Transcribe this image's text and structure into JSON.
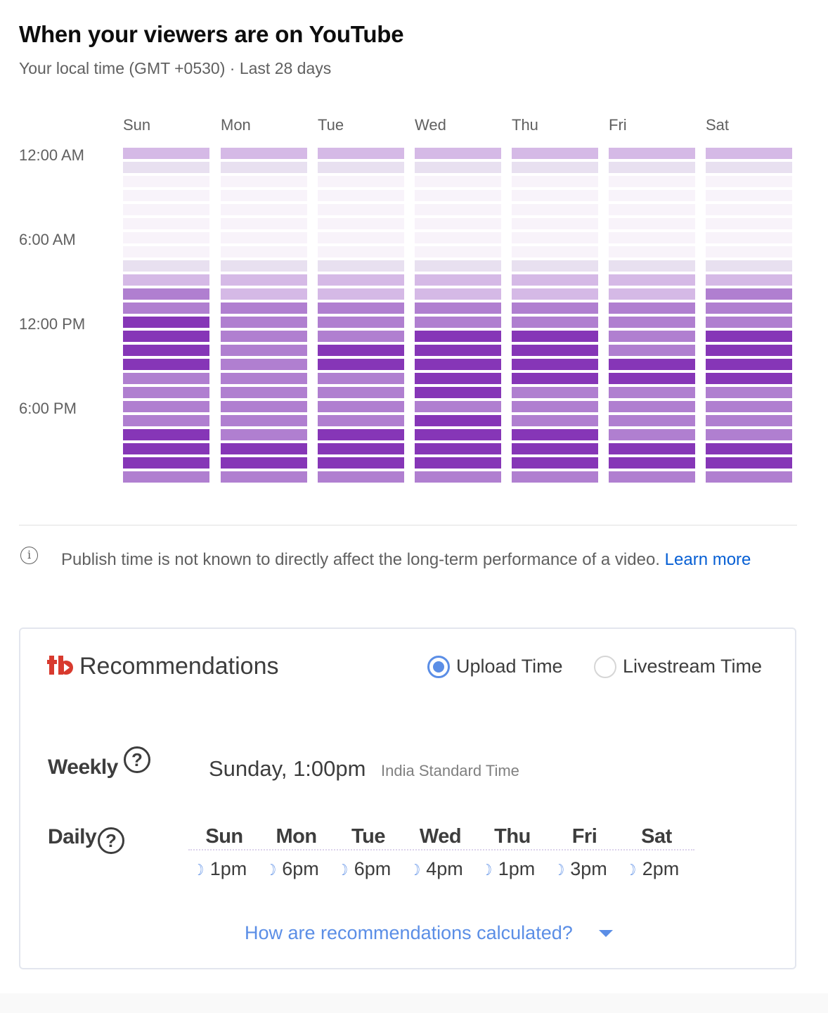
{
  "header": {
    "title": "When your viewers are on YouTube",
    "subtitle": "Your local time (GMT +0530) · Last 28 days"
  },
  "chart_data": {
    "type": "heatmap",
    "title": "When your viewers are on YouTube",
    "columns": [
      "Sun",
      "Mon",
      "Tue",
      "Wed",
      "Thu",
      "Fri",
      "Sat"
    ],
    "row_labels": [
      "12:00 AM",
      "6:00 AM",
      "12:00 PM",
      "6:00 PM"
    ],
    "rows_per_day": 24,
    "scale": "0 = fewest viewers, 4 = most viewers",
    "colors": [
      "#f8f3fa",
      "#e8e0f0",
      "#d5b9e6",
      "#b07fd0",
      "#8636b7"
    ],
    "levels": [
      [
        2,
        2,
        2,
        2,
        2,
        2,
        2
      ],
      [
        1,
        1,
        1,
        1,
        1,
        1,
        1
      ],
      [
        0,
        0,
        0,
        0,
        0,
        0,
        0
      ],
      [
        0,
        0,
        0,
        0,
        0,
        0,
        0
      ],
      [
        0,
        0,
        0,
        0,
        0,
        0,
        0
      ],
      [
        0,
        0,
        0,
        0,
        0,
        0,
        0
      ],
      [
        0,
        0,
        0,
        0,
        0,
        0,
        0
      ],
      [
        0,
        0,
        0,
        0,
        0,
        0,
        0
      ],
      [
        1,
        1,
        1,
        1,
        1,
        1,
        1
      ],
      [
        2,
        2,
        2,
        2,
        2,
        2,
        2
      ],
      [
        3,
        2,
        2,
        2,
        2,
        2,
        3
      ],
      [
        3,
        3,
        3,
        3,
        3,
        3,
        3
      ],
      [
        4,
        3,
        3,
        3,
        3,
        3,
        3
      ],
      [
        4,
        3,
        3,
        4,
        4,
        3,
        4
      ],
      [
        4,
        3,
        4,
        4,
        4,
        3,
        4
      ],
      [
        4,
        3,
        4,
        4,
        4,
        4,
        4
      ],
      [
        3,
        3,
        3,
        4,
        4,
        4,
        4
      ],
      [
        3,
        3,
        3,
        4,
        3,
        3,
        3
      ],
      [
        3,
        3,
        3,
        3,
        3,
        3,
        3
      ],
      [
        3,
        3,
        3,
        4,
        3,
        3,
        3
      ],
      [
        4,
        3,
        4,
        4,
        4,
        3,
        3
      ],
      [
        4,
        4,
        4,
        4,
        4,
        4,
        4
      ],
      [
        4,
        4,
        4,
        4,
        4,
        4,
        4
      ],
      [
        3,
        3,
        3,
        3,
        3,
        3,
        3
      ]
    ]
  },
  "note": {
    "text": "Publish time is not known to directly affect the long-term performance of a video. ",
    "link": "Learn more"
  },
  "recommendations": {
    "title": "Recommendations",
    "logo": "tb",
    "radios": [
      {
        "label": "Upload Time",
        "selected": true
      },
      {
        "label": "Livestream Time",
        "selected": false
      }
    ],
    "weekly": {
      "label": "Weekly",
      "value": "Sunday, 1:00pm",
      "timezone": "India Standard Time"
    },
    "daily": {
      "label": "Daily",
      "days": [
        {
          "day": "Sun",
          "time": "1pm"
        },
        {
          "day": "Mon",
          "time": "6pm"
        },
        {
          "day": "Tue",
          "time": "6pm"
        },
        {
          "day": "Wed",
          "time": "4pm"
        },
        {
          "day": "Thu",
          "time": "1pm"
        },
        {
          "day": "Fri",
          "time": "3pm"
        },
        {
          "day": "Sat",
          "time": "2pm"
        }
      ]
    },
    "help_icon": "?",
    "moon_icon": "☽",
    "how_link": "How are recommendations calculated?"
  }
}
